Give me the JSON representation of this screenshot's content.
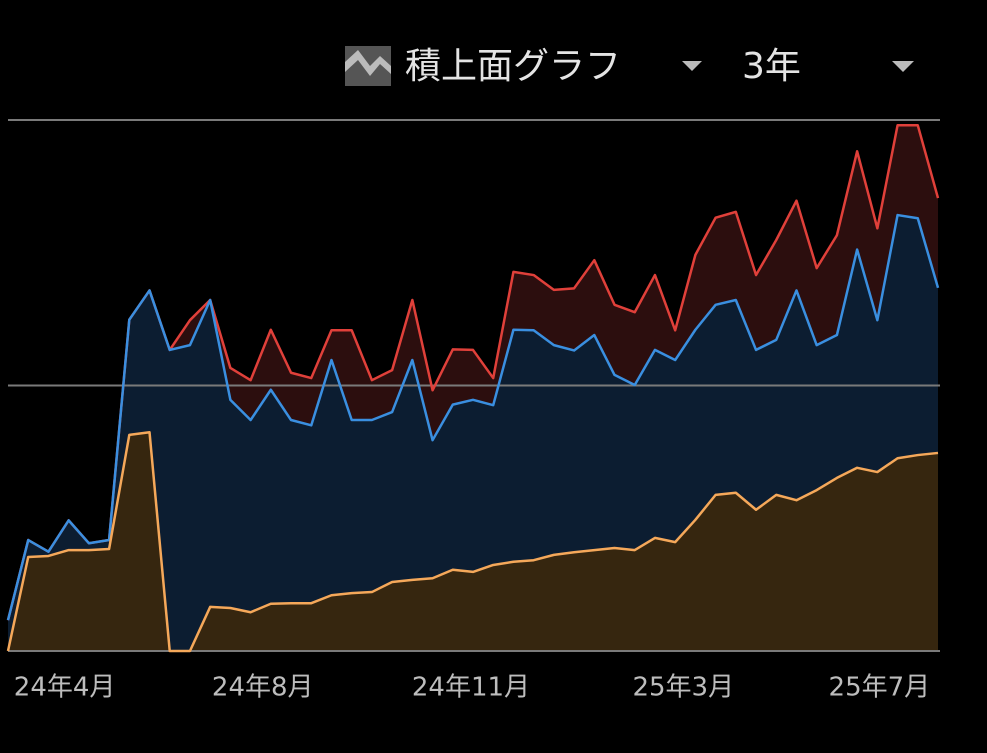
{
  "controls": {
    "chart_type": "積上面グラフ",
    "range": "3年"
  },
  "chart_data": {
    "type": "area",
    "stacked": true,
    "xlim": [
      0,
      46
    ],
    "xticks": [
      {
        "value": 2.8,
        "label": "24年4月"
      },
      {
        "value": 12.6,
        "label": "24年8月"
      },
      {
        "value": 22.9,
        "label": "24年11月"
      },
      {
        "value": 33.4,
        "label": "25年3月"
      },
      {
        "value": 43.1,
        "label": "25年7月"
      }
    ],
    "ylim": [
      0,
      100
    ],
    "yticks": [
      0,
      50,
      100
    ],
    "grid": true,
    "series": [
      {
        "color": "#f5a85a",
        "fill": "#36260f",
        "values": [
          0,
          17.7,
          17.9,
          19.0,
          19.0,
          19.2,
          40.7,
          41.2,
          0,
          0,
          8.3,
          8.1,
          7.3,
          8.9,
          9.0,
          9.0,
          10.5,
          10.9,
          11.1,
          13.0,
          13.4,
          13.7,
          15.3,
          14.9,
          16.2,
          16.8,
          17.1,
          18.1,
          18.6,
          19.0,
          19.4,
          19.0,
          21.3,
          20.5,
          24.7,
          29.4,
          29.8,
          26.6,
          29.4,
          28.4,
          30.3,
          32.6,
          34.5,
          33.7,
          36.3,
          36.9,
          37.3
        ]
      },
      {
        "color": "#3a8fe0",
        "fill": "#0c1d31",
        "values": [
          5.8,
          3.2,
          0.8,
          5.6,
          1.3,
          1.7,
          21.7,
          26.7,
          56.7,
          57.6,
          57.8,
          39.2,
          36.2,
          40.3,
          34.5,
          33.5,
          44.3,
          32.6,
          32.4,
          32.0,
          41.4,
          26.0,
          31.1,
          32.4,
          30.1,
          43.7,
          43.3,
          39.5,
          38.0,
          40.5,
          32.6,
          31.1,
          35.4,
          34.3,
          35.8,
          35.8,
          36.3,
          30.1,
          29.2,
          39.5,
          27.3,
          26.9,
          41.1,
          28.6,
          45.8,
          44.6,
          31.1
        ]
      },
      {
        "color": "#e0403a",
        "fill": "#2c0e0e",
        "values": [
          0,
          0,
          0,
          0,
          0,
          0,
          0,
          0,
          0,
          4.7,
          0,
          6.0,
          7.5,
          11.3,
          8.9,
          8.9,
          5.6,
          16.9,
          7.5,
          7.9,
          11.3,
          9.4,
          10.4,
          9.4,
          5.1,
          10.9,
          10.4,
          10.4,
          11.7,
          14.1,
          13.2,
          13.7,
          14.1,
          5.6,
          14.1,
          16.4,
          16.6,
          14.1,
          18.8,
          16.9,
          14.5,
          18.8,
          18.5,
          17.3,
          16.9,
          17.5,
          16.9
        ]
      }
    ]
  }
}
